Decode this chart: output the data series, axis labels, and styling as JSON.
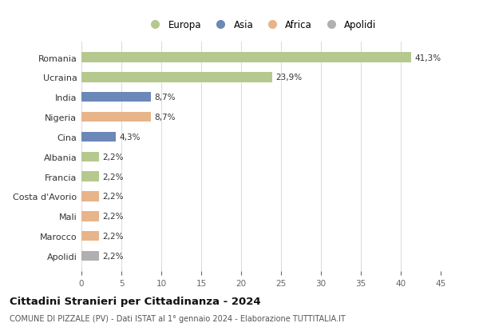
{
  "categories": [
    "Romania",
    "Ucraina",
    "India",
    "Nigeria",
    "Cina",
    "Albania",
    "Francia",
    "Costa d'Avorio",
    "Mali",
    "Marocco",
    "Apolidi"
  ],
  "values": [
    41.3,
    23.9,
    8.7,
    8.7,
    4.3,
    2.2,
    2.2,
    2.2,
    2.2,
    2.2,
    2.2
  ],
  "labels": [
    "41,3%",
    "23,9%",
    "8,7%",
    "8,7%",
    "4,3%",
    "2,2%",
    "2,2%",
    "2,2%",
    "2,2%",
    "2,2%",
    "2,2%"
  ],
  "colors": [
    "#b5c98e",
    "#b5c98e",
    "#6b88b8",
    "#e8b48a",
    "#6b88b8",
    "#b5c98e",
    "#b5c98e",
    "#e8b48a",
    "#e8b48a",
    "#e8b48a",
    "#b0b0b0"
  ],
  "legend_labels": [
    "Europa",
    "Asia",
    "Africa",
    "Apolidi"
  ],
  "legend_colors": [
    "#b5c98e",
    "#6b88b8",
    "#e8b48a",
    "#b0b0b0"
  ],
  "title": "Cittadini Stranieri per Cittadinanza - 2024",
  "subtitle": "COMUNE DI PIZZALE (PV) - Dati ISTAT al 1° gennaio 2024 - Elaborazione TUTTITALIA.IT",
  "xlim": [
    0,
    45
  ],
  "xticks": [
    0,
    5,
    10,
    15,
    20,
    25,
    30,
    35,
    40,
    45
  ],
  "bg_color": "#ffffff",
  "grid_color": "#dddddd",
  "bar_height": 0.5
}
